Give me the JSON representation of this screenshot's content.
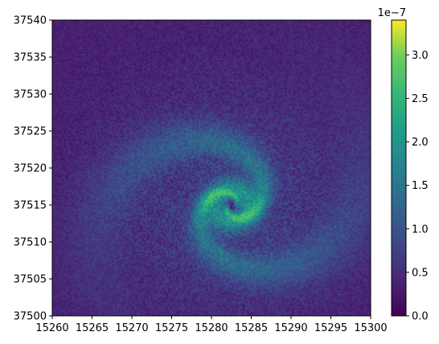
{
  "chart_data": {
    "type": "heatmap",
    "title": "",
    "xlabel": "",
    "ylabel": "",
    "xlim": [
      15260,
      15300
    ],
    "ylim": [
      37500,
      37540
    ],
    "x_ticks": [
      "15260",
      "15265",
      "15270",
      "15275",
      "15280",
      "15285",
      "15290",
      "15295",
      "15300"
    ],
    "y_ticks": [
      "37500",
      "37505",
      "37510",
      "37515",
      "37520",
      "37525",
      "37530",
      "37535",
      "37540"
    ],
    "colormap": "viridis",
    "colorbar": {
      "range": [
        0.0,
        3.4e-07
      ],
      "offset_label": "1e−7",
      "ticks": [
        "0.0",
        "0.5",
        "1.0",
        "1.5",
        "2.0",
        "2.5",
        "3.0"
      ],
      "tick_values": [
        0.0,
        0.5,
        1.0,
        1.5,
        2.0,
        2.5,
        3.0
      ]
    },
    "features": {
      "background_level": 0.35,
      "peak_level": 2.6,
      "center": [
        15282.5,
        37515
      ],
      "structure": "spiral with bright eye near center, two curved outer arms"
    }
  }
}
